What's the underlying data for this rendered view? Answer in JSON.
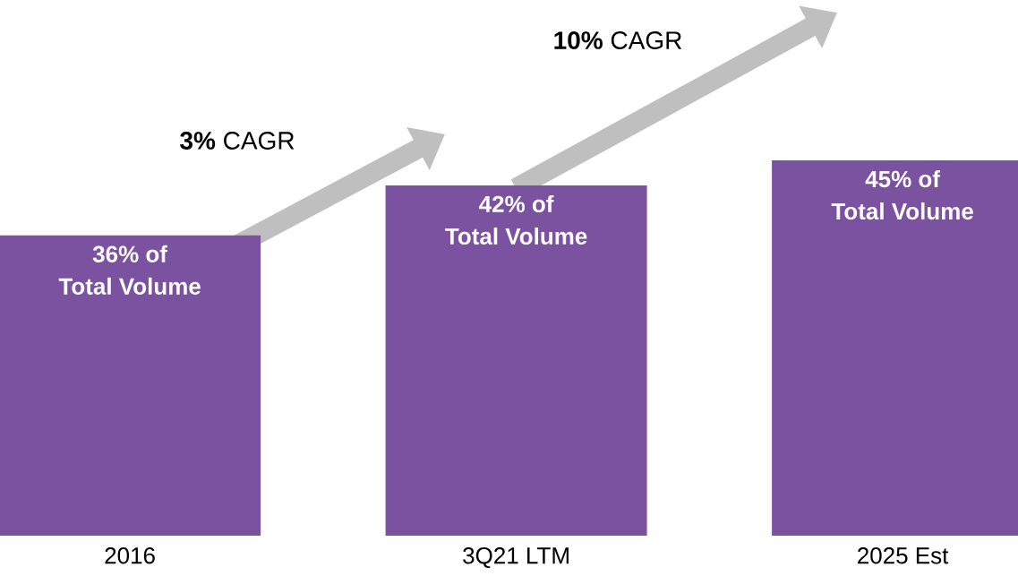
{
  "chart_data": {
    "type": "bar",
    "categories": [
      "2016",
      "3Q21 LTM",
      "2025 Est"
    ],
    "values": [
      36,
      42,
      45
    ],
    "color": "#7b52a0",
    "value_labels": [
      "36% of\nTotal Volume",
      "42% of\nTotal Volume",
      "45% of\nTotal Volume"
    ],
    "annotations": [
      "**3%** CAGR",
      "**10%** CAGR"
    ]
  }
}
